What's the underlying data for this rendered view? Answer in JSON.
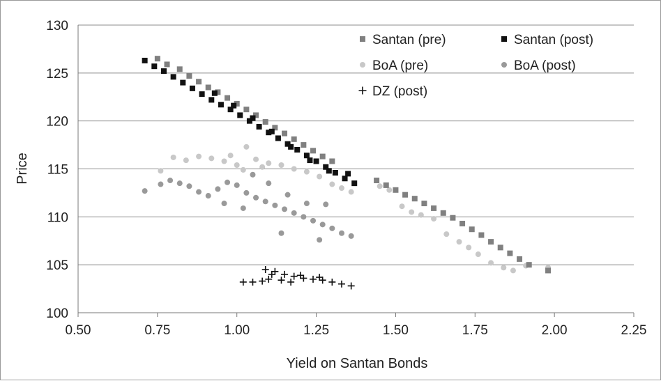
{
  "chart_data": {
    "type": "scatter",
    "title": "",
    "xlabel": "Yield on Santan Bonds",
    "ylabel": "Price",
    "xlim": [
      0.5,
      2.25
    ],
    "ylim": [
      100,
      130
    ],
    "x_ticks": [
      "0.50",
      "0.75",
      "1.00",
      "1.25",
      "1.50",
      "1.75",
      "2.00",
      "2.25"
    ],
    "y_ticks": [
      "100",
      "105",
      "110",
      "115",
      "120",
      "125",
      "130"
    ],
    "grid": "horizontal",
    "legend_position": "top-right",
    "series": [
      {
        "name": "Santan (pre)",
        "marker": "square",
        "color": "#808080",
        "points": [
          [
            0.75,
            126.5
          ],
          [
            0.78,
            125.9
          ],
          [
            0.82,
            125.4
          ],
          [
            0.85,
            124.7
          ],
          [
            0.88,
            124.1
          ],
          [
            0.91,
            123.5
          ],
          [
            0.94,
            123.0
          ],
          [
            0.97,
            122.4
          ],
          [
            1.0,
            121.8
          ],
          [
            1.03,
            121.2
          ],
          [
            1.06,
            120.6
          ],
          [
            1.09,
            119.9
          ],
          [
            1.12,
            119.3
          ],
          [
            1.15,
            118.7
          ],
          [
            1.18,
            118.1
          ],
          [
            1.21,
            117.5
          ],
          [
            1.24,
            116.9
          ],
          [
            1.27,
            116.3
          ],
          [
            1.3,
            115.8
          ],
          [
            1.44,
            113.8
          ],
          [
            1.47,
            113.3
          ],
          [
            1.5,
            112.8
          ],
          [
            1.53,
            112.3
          ],
          [
            1.56,
            111.9
          ],
          [
            1.59,
            111.4
          ],
          [
            1.62,
            110.9
          ],
          [
            1.65,
            110.4
          ],
          [
            1.68,
            109.9
          ],
          [
            1.71,
            109.3
          ],
          [
            1.74,
            108.7
          ],
          [
            1.77,
            108.1
          ],
          [
            1.8,
            107.4
          ],
          [
            1.83,
            106.8
          ],
          [
            1.86,
            106.2
          ],
          [
            1.89,
            105.6
          ],
          [
            1.92,
            105.0
          ],
          [
            1.98,
            104.4
          ]
        ]
      },
      {
        "name": "Santan (post)",
        "marker": "square",
        "color": "#111111",
        "points": [
          [
            0.71,
            126.3
          ],
          [
            0.74,
            125.7
          ],
          [
            0.77,
            125.2
          ],
          [
            0.8,
            124.6
          ],
          [
            0.83,
            124.0
          ],
          [
            0.86,
            123.4
          ],
          [
            0.89,
            122.8
          ],
          [
            0.92,
            122.2
          ],
          [
            0.95,
            121.7
          ],
          [
            0.98,
            121.2
          ],
          [
            1.01,
            120.6
          ],
          [
            1.04,
            120.0
          ],
          [
            1.07,
            119.4
          ],
          [
            1.1,
            118.8
          ],
          [
            1.13,
            118.2
          ],
          [
            1.16,
            117.6
          ],
          [
            1.19,
            117.0
          ],
          [
            1.22,
            116.4
          ],
          [
            1.25,
            115.8
          ],
          [
            1.28,
            115.2
          ],
          [
            1.31,
            114.6
          ],
          [
            1.34,
            114.0
          ],
          [
            1.37,
            113.5
          ],
          [
            0.93,
            122.9
          ],
          [
            0.99,
            121.6
          ],
          [
            1.05,
            120.3
          ],
          [
            1.11,
            118.9
          ],
          [
            1.17,
            117.3
          ],
          [
            1.23,
            115.9
          ],
          [
            1.29,
            114.8
          ],
          [
            1.35,
            114.5
          ]
        ]
      },
      {
        "name": "BoA (pre)",
        "marker": "circle",
        "color": "#c8c8c8",
        "points": [
          [
            0.76,
            114.8
          ],
          [
            0.8,
            116.2
          ],
          [
            0.84,
            115.9
          ],
          [
            0.88,
            116.3
          ],
          [
            0.92,
            116.1
          ],
          [
            0.96,
            115.8
          ],
          [
            1.0,
            115.4
          ],
          [
            1.03,
            117.3
          ],
          [
            1.06,
            116.0
          ],
          [
            1.1,
            115.6
          ],
          [
            1.14,
            115.4
          ],
          [
            1.18,
            115.0
          ],
          [
            1.22,
            114.7
          ],
          [
            1.26,
            114.2
          ],
          [
            1.3,
            113.4
          ],
          [
            1.33,
            113.0
          ],
          [
            1.36,
            112.6
          ],
          [
            0.98,
            116.4
          ],
          [
            1.02,
            114.9
          ],
          [
            1.08,
            115.2
          ],
          [
            1.45,
            113.2
          ],
          [
            1.48,
            112.8
          ],
          [
            1.52,
            111.1
          ],
          [
            1.55,
            110.5
          ],
          [
            1.58,
            110.2
          ],
          [
            1.62,
            109.8
          ],
          [
            1.66,
            108.2
          ],
          [
            1.7,
            107.4
          ],
          [
            1.73,
            106.8
          ],
          [
            1.76,
            106.1
          ],
          [
            1.8,
            105.2
          ],
          [
            1.84,
            104.7
          ],
          [
            1.87,
            104.4
          ],
          [
            1.91,
            104.9
          ],
          [
            1.98,
            104.7
          ]
        ]
      },
      {
        "name": "BoA (post)",
        "marker": "circle",
        "color": "#999999",
        "points": [
          [
            0.71,
            112.7
          ],
          [
            0.76,
            113.4
          ],
          [
            0.79,
            113.8
          ],
          [
            0.82,
            113.5
          ],
          [
            0.85,
            113.2
          ],
          [
            0.88,
            112.6
          ],
          [
            0.91,
            112.2
          ],
          [
            0.94,
            112.9
          ],
          [
            0.97,
            113.6
          ],
          [
            1.0,
            113.3
          ],
          [
            1.03,
            112.5
          ],
          [
            1.06,
            112.0
          ],
          [
            1.09,
            111.6
          ],
          [
            1.12,
            111.2
          ],
          [
            1.15,
            110.8
          ],
          [
            1.18,
            110.4
          ],
          [
            1.21,
            110.0
          ],
          [
            1.24,
            109.6
          ],
          [
            1.27,
            109.2
          ],
          [
            1.3,
            108.8
          ],
          [
            1.33,
            108.3
          ],
          [
            1.36,
            108.0
          ],
          [
            0.96,
            111.4
          ],
          [
            1.02,
            110.9
          ],
          [
            1.14,
            108.3
          ],
          [
            1.26,
            107.6
          ],
          [
            1.05,
            114.4
          ],
          [
            1.1,
            113.5
          ],
          [
            1.16,
            112.3
          ],
          [
            1.22,
            111.4
          ],
          [
            1.28,
            111.3
          ]
        ]
      },
      {
        "name": "DZ (post)",
        "marker": "plus",
        "color": "#111111",
        "points": [
          [
            1.02,
            103.2
          ],
          [
            1.05,
            103.2
          ],
          [
            1.08,
            103.3
          ],
          [
            1.1,
            103.5
          ],
          [
            1.09,
            104.5
          ],
          [
            1.12,
            104.3
          ],
          [
            1.15,
            104.0
          ],
          [
            1.18,
            103.8
          ],
          [
            1.21,
            103.6
          ],
          [
            1.24,
            103.5
          ],
          [
            1.27,
            103.4
          ],
          [
            1.3,
            103.2
          ],
          [
            1.33,
            103.0
          ],
          [
            1.36,
            102.8
          ],
          [
            1.14,
            103.4
          ],
          [
            1.2,
            103.9
          ],
          [
            1.26,
            103.7
          ],
          [
            1.11,
            104.0
          ],
          [
            1.17,
            103.2
          ]
        ]
      }
    ]
  }
}
